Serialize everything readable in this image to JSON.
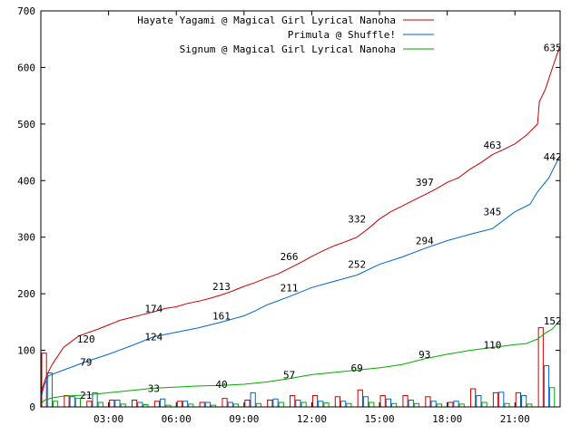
{
  "chart_data": {
    "type": "line",
    "title": "",
    "xlabel": "",
    "ylabel": "",
    "xlim": [
      0,
      1380
    ],
    "ylim": [
      0,
      700
    ],
    "grid": false,
    "legend_position": "top-right",
    "yticks": [
      0,
      100,
      200,
      300,
      400,
      500,
      600,
      700
    ],
    "xticks": [
      {
        "x": 180,
        "label": "03:00"
      },
      {
        "x": 360,
        "label": "06:00"
      },
      {
        "x": 540,
        "label": "09:00"
      },
      {
        "x": 720,
        "label": "12:00"
      },
      {
        "x": 900,
        "label": "15:00"
      },
      {
        "x": 1080,
        "label": "18:00"
      },
      {
        "x": 1260,
        "label": "21:00"
      }
    ],
    "series": [
      {
        "name": "Hayate Yagami @ Magical Girl Lyrical Nanoha",
        "color": "#cc0000",
        "points": [
          [
            0,
            20
          ],
          [
            5,
            35
          ],
          [
            15,
            55
          ],
          [
            30,
            75
          ],
          [
            45,
            90
          ],
          [
            60,
            105
          ],
          [
            80,
            115
          ],
          [
            100,
            125
          ],
          [
            120,
            130
          ],
          [
            150,
            137
          ],
          [
            180,
            145
          ],
          [
            210,
            153
          ],
          [
            240,
            158
          ],
          [
            270,
            163
          ],
          [
            300,
            168
          ],
          [
            330,
            174
          ],
          [
            360,
            177
          ],
          [
            390,
            183
          ],
          [
            420,
            187
          ],
          [
            450,
            192
          ],
          [
            480,
            198
          ],
          [
            510,
            205
          ],
          [
            540,
            213
          ],
          [
            570,
            220
          ],
          [
            600,
            228
          ],
          [
            630,
            235
          ],
          [
            660,
            245
          ],
          [
            690,
            255
          ],
          [
            720,
            266
          ],
          [
            750,
            276
          ],
          [
            780,
            285
          ],
          [
            810,
            292
          ],
          [
            840,
            300
          ],
          [
            870,
            315
          ],
          [
            900,
            332
          ],
          [
            930,
            345
          ],
          [
            960,
            355
          ],
          [
            990,
            365
          ],
          [
            1020,
            375
          ],
          [
            1050,
            385
          ],
          [
            1080,
            397
          ],
          [
            1110,
            405
          ],
          [
            1140,
            420
          ],
          [
            1170,
            432
          ],
          [
            1200,
            446
          ],
          [
            1230,
            455
          ],
          [
            1260,
            465
          ],
          [
            1290,
            480
          ],
          [
            1320,
            500
          ],
          [
            1325,
            540
          ],
          [
            1340,
            560
          ],
          [
            1360,
            600
          ],
          [
            1378,
            635
          ]
        ],
        "labels": [
          [
            120,
            120
          ],
          [
            300,
            174
          ],
          [
            480,
            213
          ],
          [
            660,
            266
          ],
          [
            840,
            332
          ],
          [
            1020,
            397
          ],
          [
            1200,
            463
          ],
          [
            1360,
            635
          ]
        ],
        "bars": [
          [
            0,
            95
          ],
          [
            60,
            20
          ],
          [
            120,
            10
          ],
          [
            180,
            12
          ],
          [
            240,
            12
          ],
          [
            300,
            10
          ],
          [
            360,
            10
          ],
          [
            420,
            8
          ],
          [
            480,
            15
          ],
          [
            540,
            12
          ],
          [
            600,
            12
          ],
          [
            660,
            20
          ],
          [
            720,
            20
          ],
          [
            780,
            18
          ],
          [
            840,
            30
          ],
          [
            900,
            20
          ],
          [
            960,
            20
          ],
          [
            1020,
            18
          ],
          [
            1080,
            8
          ],
          [
            1140,
            32
          ],
          [
            1200,
            25
          ],
          [
            1260,
            25
          ],
          [
            1320,
            140
          ]
        ]
      },
      {
        "name": "Primula @ Shuffle!",
        "color": "#0066cc",
        "points": [
          [
            0,
            15
          ],
          [
            10,
            40
          ],
          [
            20,
            55
          ],
          [
            60,
            65
          ],
          [
            120,
            80
          ],
          [
            180,
            93
          ],
          [
            240,
            108
          ],
          [
            300,
            124
          ],
          [
            360,
            132
          ],
          [
            420,
            140
          ],
          [
            480,
            150
          ],
          [
            540,
            161
          ],
          [
            570,
            170
          ],
          [
            600,
            180
          ],
          [
            660,
            195
          ],
          [
            720,
            211
          ],
          [
            780,
            222
          ],
          [
            840,
            233
          ],
          [
            900,
            252
          ],
          [
            960,
            265
          ],
          [
            1020,
            280
          ],
          [
            1080,
            294
          ],
          [
            1140,
            305
          ],
          [
            1200,
            315
          ],
          [
            1260,
            345
          ],
          [
            1300,
            358
          ],
          [
            1320,
            380
          ],
          [
            1350,
            405
          ],
          [
            1378,
            442
          ]
        ],
        "labels": [
          [
            120,
            79
          ],
          [
            300,
            124
          ],
          [
            480,
            161
          ],
          [
            660,
            211
          ],
          [
            840,
            252
          ],
          [
            1020,
            294
          ],
          [
            1200,
            345
          ],
          [
            1360,
            442
          ]
        ],
        "bars": [
          [
            0,
            60
          ],
          [
            60,
            18
          ],
          [
            120,
            25
          ],
          [
            180,
            12
          ],
          [
            240,
            8
          ],
          [
            300,
            14
          ],
          [
            360,
            10
          ],
          [
            420,
            8
          ],
          [
            480,
            8
          ],
          [
            540,
            25
          ],
          [
            600,
            14
          ],
          [
            660,
            12
          ],
          [
            720,
            10
          ],
          [
            780,
            10
          ],
          [
            840,
            18
          ],
          [
            900,
            14
          ],
          [
            960,
            12
          ],
          [
            1020,
            10
          ],
          [
            1080,
            10
          ],
          [
            1140,
            20
          ],
          [
            1200,
            26
          ],
          [
            1260,
            20
          ],
          [
            1320,
            73
          ]
        ]
      },
      {
        "name": "Signum @ Magical Girl Lyrical Nanoha",
        "color": "#00aa00",
        "points": [
          [
            0,
            5
          ],
          [
            10,
            12
          ],
          [
            30,
            16
          ],
          [
            60,
            19
          ],
          [
            120,
            21
          ],
          [
            180,
            25
          ],
          [
            240,
            29
          ],
          [
            300,
            33
          ],
          [
            360,
            35
          ],
          [
            420,
            37
          ],
          [
            480,
            38
          ],
          [
            540,
            40
          ],
          [
            600,
            44
          ],
          [
            660,
            50
          ],
          [
            720,
            57
          ],
          [
            780,
            61
          ],
          [
            840,
            65
          ],
          [
            900,
            69
          ],
          [
            960,
            75
          ],
          [
            1020,
            85
          ],
          [
            1080,
            93
          ],
          [
            1140,
            100
          ],
          [
            1200,
            105
          ],
          [
            1260,
            110
          ],
          [
            1290,
            112
          ],
          [
            1320,
            120
          ],
          [
            1340,
            130
          ],
          [
            1360,
            138
          ],
          [
            1378,
            152
          ]
        ],
        "labels": [
          [
            120,
            21
          ],
          [
            300,
            33
          ],
          [
            480,
            40
          ],
          [
            660,
            57
          ],
          [
            840,
            69
          ],
          [
            1020,
            93
          ],
          [
            1200,
            110
          ],
          [
            1360,
            152
          ]
        ],
        "bars": [
          [
            0,
            10
          ],
          [
            60,
            15
          ],
          [
            120,
            8
          ],
          [
            180,
            5
          ],
          [
            240,
            4
          ],
          [
            300,
            3
          ],
          [
            360,
            5
          ],
          [
            420,
            3
          ],
          [
            480,
            5
          ],
          [
            540,
            6
          ],
          [
            600,
            8
          ],
          [
            660,
            8
          ],
          [
            720,
            7
          ],
          [
            780,
            6
          ],
          [
            840,
            8
          ],
          [
            900,
            6
          ],
          [
            960,
            6
          ],
          [
            1020,
            5
          ],
          [
            1080,
            5
          ],
          [
            1140,
            8
          ],
          [
            1200,
            6
          ],
          [
            1260,
            5
          ],
          [
            1320,
            34
          ]
        ]
      }
    ]
  }
}
